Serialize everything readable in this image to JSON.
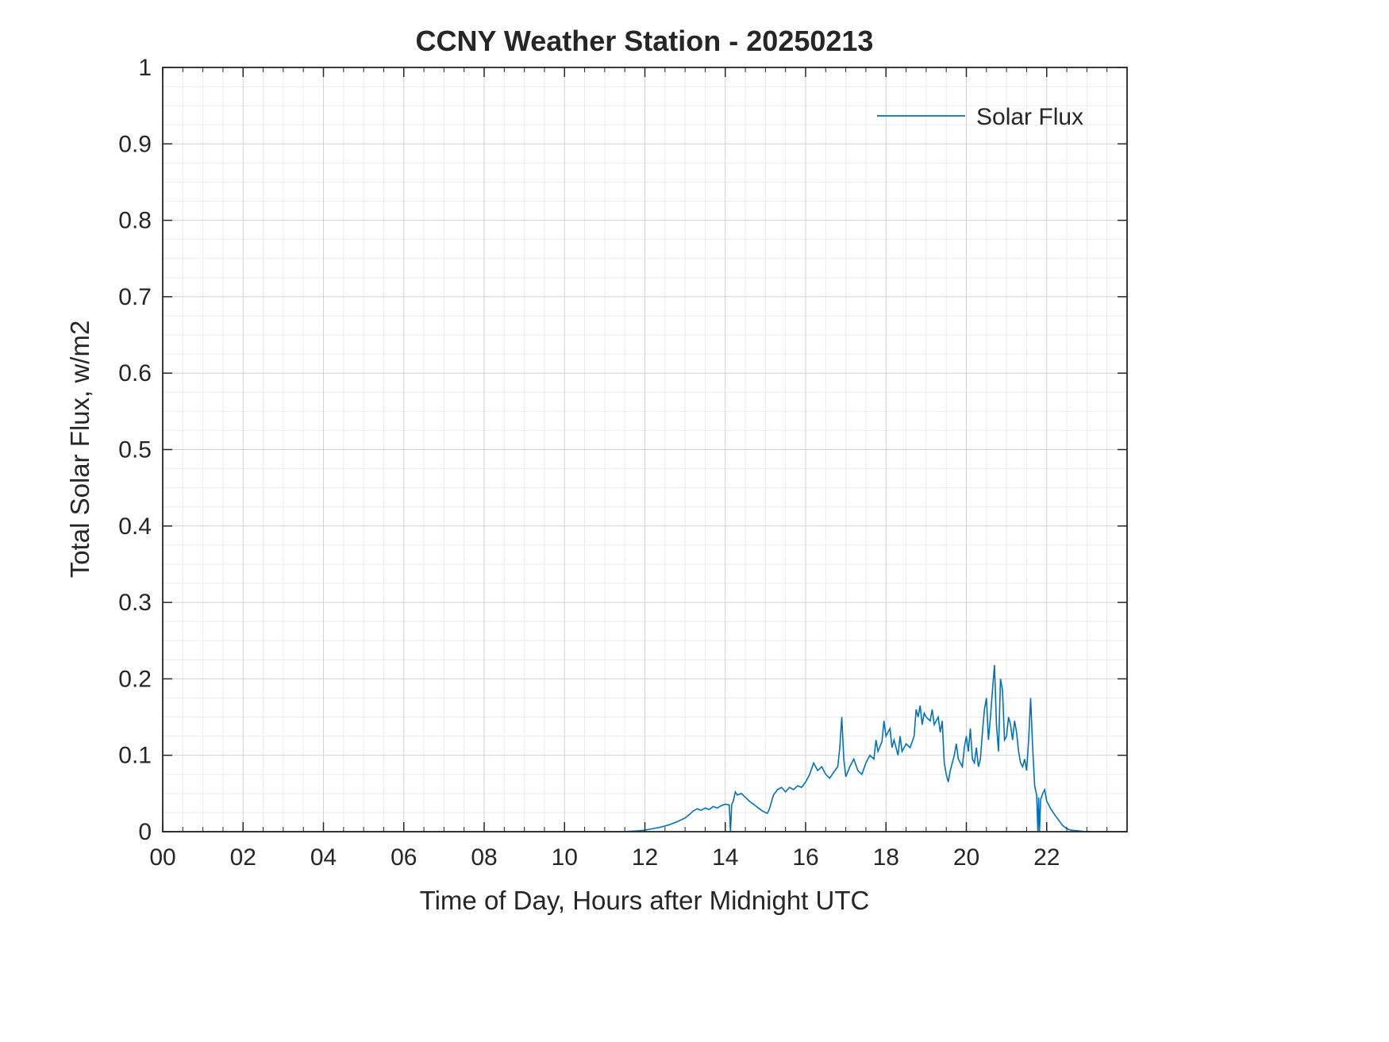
{
  "colors": {
    "background": "#ffffff",
    "axis": "#262626",
    "grid_major": "#d2d2d2",
    "grid_minor": "#ebebeb",
    "series_blue": "#0072BD"
  },
  "chart_data": {
    "type": "line",
    "title": "CCNY Weather Station - 20250213",
    "xlabel": "Time of Day, Hours after Midnight UTC",
    "ylabel": "Total Solar Flux, w/m2",
    "xlim": [
      0,
      24
    ],
    "ylim": [
      0,
      1
    ],
    "x_ticks": {
      "values": [
        0,
        2,
        4,
        6,
        8,
        10,
        12,
        14,
        16,
        18,
        20,
        22
      ],
      "labels": [
        "00",
        "02",
        "04",
        "06",
        "08",
        "10",
        "12",
        "14",
        "16",
        "18",
        "20",
        "22"
      ]
    },
    "y_ticks": {
      "values": [
        0,
        0.1,
        0.2,
        0.3,
        0.4,
        0.5,
        0.6,
        0.7,
        0.8,
        0.9,
        1
      ],
      "labels": [
        "0",
        "0.1",
        "0.2",
        "0.3",
        "0.4",
        "0.5",
        "0.6",
        "0.7",
        "0.8",
        "0.9",
        "1"
      ]
    },
    "grid": {
      "major": true,
      "minor": true,
      "x_minor_step": 0.5,
      "y_minor_step": 0.025
    },
    "legend": {
      "position": "northeast",
      "boxed": false,
      "entries": [
        {
          "label": "Solar Flux",
          "color": "#0072BD"
        }
      ]
    },
    "series": [
      {
        "name": "Solar Flux",
        "color": "#0072BD",
        "points": [
          [
            0,
            0
          ],
          [
            0.5,
            0
          ],
          [
            1,
            0
          ],
          [
            1.5,
            0
          ],
          [
            2,
            0
          ],
          [
            2.5,
            0
          ],
          [
            3,
            0
          ],
          [
            3.5,
            0
          ],
          [
            4,
            0
          ],
          [
            4.5,
            0
          ],
          [
            5,
            0
          ],
          [
            5.5,
            0
          ],
          [
            6,
            0
          ],
          [
            6.5,
            0
          ],
          [
            7,
            0
          ],
          [
            7.5,
            0
          ],
          [
            8,
            0
          ],
          [
            8.5,
            0
          ],
          [
            9,
            0
          ],
          [
            9.5,
            0
          ],
          [
            10,
            0
          ],
          [
            10.5,
            0
          ],
          [
            11,
            0
          ],
          [
            11.4,
            0
          ],
          [
            11.8,
            0.001
          ],
          [
            12.0,
            0.002
          ],
          [
            12.2,
            0.004
          ],
          [
            12.4,
            0.006
          ],
          [
            12.6,
            0.009
          ],
          [
            12.8,
            0.013
          ],
          [
            13.0,
            0.018
          ],
          [
            13.1,
            0.022
          ],
          [
            13.2,
            0.027
          ],
          [
            13.3,
            0.03
          ],
          [
            13.4,
            0.028
          ],
          [
            13.5,
            0.031
          ],
          [
            13.6,
            0.029
          ],
          [
            13.7,
            0.033
          ],
          [
            13.8,
            0.031
          ],
          [
            13.9,
            0.034
          ],
          [
            14.0,
            0.036
          ],
          [
            14.1,
            0.035
          ],
          [
            14.13,
            0.0
          ],
          [
            14.16,
            0.035
          ],
          [
            14.2,
            0.04
          ],
          [
            14.25,
            0.052
          ],
          [
            14.3,
            0.048
          ],
          [
            14.4,
            0.05
          ],
          [
            14.5,
            0.045
          ],
          [
            14.6,
            0.04
          ],
          [
            14.7,
            0.036
          ],
          [
            14.8,
            0.032
          ],
          [
            14.9,
            0.028
          ],
          [
            15.0,
            0.025
          ],
          [
            15.05,
            0.024
          ],
          [
            15.1,
            0.03
          ],
          [
            15.2,
            0.048
          ],
          [
            15.3,
            0.055
          ],
          [
            15.4,
            0.058
          ],
          [
            15.5,
            0.052
          ],
          [
            15.6,
            0.058
          ],
          [
            15.7,
            0.055
          ],
          [
            15.8,
            0.06
          ],
          [
            15.9,
            0.058
          ],
          [
            16.0,
            0.065
          ],
          [
            16.1,
            0.075
          ],
          [
            16.2,
            0.09
          ],
          [
            16.3,
            0.08
          ],
          [
            16.4,
            0.085
          ],
          [
            16.5,
            0.075
          ],
          [
            16.6,
            0.07
          ],
          [
            16.7,
            0.078
          ],
          [
            16.8,
            0.085
          ],
          [
            16.85,
            0.11
          ],
          [
            16.9,
            0.15
          ],
          [
            16.95,
            0.095
          ],
          [
            17.0,
            0.072
          ],
          [
            17.1,
            0.085
          ],
          [
            17.2,
            0.095
          ],
          [
            17.3,
            0.08
          ],
          [
            17.4,
            0.075
          ],
          [
            17.5,
            0.09
          ],
          [
            17.6,
            0.1
          ],
          [
            17.7,
            0.095
          ],
          [
            17.75,
            0.12
          ],
          [
            17.8,
            0.105
          ],
          [
            17.9,
            0.118
          ],
          [
            17.95,
            0.145
          ],
          [
            18.0,
            0.125
          ],
          [
            18.1,
            0.135
          ],
          [
            18.15,
            0.11
          ],
          [
            18.2,
            0.12
          ],
          [
            18.3,
            0.1
          ],
          [
            18.35,
            0.125
          ],
          [
            18.4,
            0.105
          ],
          [
            18.5,
            0.115
          ],
          [
            18.6,
            0.11
          ],
          [
            18.7,
            0.125
          ],
          [
            18.75,
            0.16
          ],
          [
            18.8,
            0.15
          ],
          [
            18.85,
            0.165
          ],
          [
            18.9,
            0.14
          ],
          [
            18.95,
            0.155
          ],
          [
            19.0,
            0.15
          ],
          [
            19.1,
            0.145
          ],
          [
            19.15,
            0.16
          ],
          [
            19.2,
            0.14
          ],
          [
            19.3,
            0.15
          ],
          [
            19.35,
            0.13
          ],
          [
            19.4,
            0.145
          ],
          [
            19.45,
            0.09
          ],
          [
            19.5,
            0.075
          ],
          [
            19.55,
            0.065
          ],
          [
            19.6,
            0.08
          ],
          [
            19.7,
            0.1
          ],
          [
            19.75,
            0.115
          ],
          [
            19.8,
            0.095
          ],
          [
            19.9,
            0.085
          ],
          [
            19.95,
            0.11
          ],
          [
            20.0,
            0.125
          ],
          [
            20.05,
            0.105
          ],
          [
            20.1,
            0.135
          ],
          [
            20.15,
            0.095
          ],
          [
            20.2,
            0.09
          ],
          [
            20.25,
            0.11
          ],
          [
            20.3,
            0.085
          ],
          [
            20.35,
            0.095
          ],
          [
            20.4,
            0.13
          ],
          [
            20.45,
            0.16
          ],
          [
            20.5,
            0.175
          ],
          [
            20.55,
            0.12
          ],
          [
            20.6,
            0.15
          ],
          [
            20.65,
            0.185
          ],
          [
            20.7,
            0.218
          ],
          [
            20.75,
            0.14
          ],
          [
            20.8,
            0.105
          ],
          [
            20.85,
            0.2
          ],
          [
            20.9,
            0.185
          ],
          [
            20.95,
            0.12
          ],
          [
            21.0,
            0.125
          ],
          [
            21.05,
            0.15
          ],
          [
            21.1,
            0.14
          ],
          [
            21.15,
            0.12
          ],
          [
            21.2,
            0.145
          ],
          [
            21.25,
            0.13
          ],
          [
            21.3,
            0.105
          ],
          [
            21.35,
            0.09
          ],
          [
            21.4,
            0.085
          ],
          [
            21.45,
            0.095
          ],
          [
            21.5,
            0.08
          ],
          [
            21.55,
            0.12
          ],
          [
            21.6,
            0.175
          ],
          [
            21.65,
            0.11
          ],
          [
            21.7,
            0.06
          ],
          [
            21.75,
            0.048
          ],
          [
            21.78,
            0.0
          ],
          [
            21.8,
            0.045
          ],
          [
            21.82,
            0.0
          ],
          [
            21.85,
            0.042
          ],
          [
            21.9,
            0.05
          ],
          [
            21.95,
            0.055
          ],
          [
            22.0,
            0.04
          ],
          [
            22.05,
            0.035
          ],
          [
            22.1,
            0.03
          ],
          [
            22.2,
            0.022
          ],
          [
            22.3,
            0.015
          ],
          [
            22.4,
            0.008
          ],
          [
            22.5,
            0.004
          ],
          [
            22.6,
            0.002
          ],
          [
            22.8,
            0.001
          ],
          [
            23.0,
            0.0
          ],
          [
            23.3,
            0.0
          ],
          [
            23.6,
            0.0
          ],
          [
            23.9,
            0.0
          ]
        ]
      }
    ]
  }
}
